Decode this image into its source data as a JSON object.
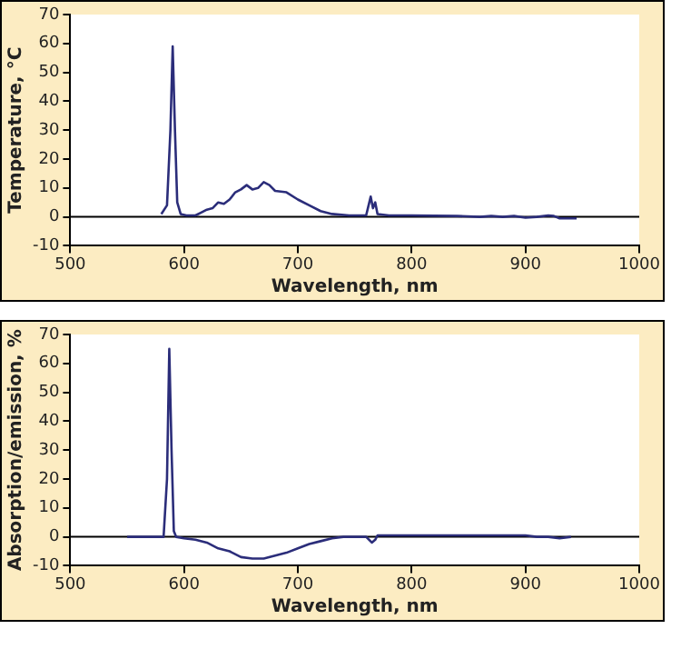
{
  "chart_data": [
    {
      "type": "line",
      "xlabel": "Wavelength, nm",
      "ylabel": "Temperature, °C",
      "xlim": [
        500,
        1000
      ],
      "xticks": [
        500,
        600,
        700,
        800,
        900,
        1000
      ],
      "ylim": [
        -10,
        70
      ],
      "yticks": [
        -10,
        0,
        10,
        20,
        30,
        40,
        50,
        60,
        70
      ],
      "grid": false,
      "marker": "none",
      "ref_lines": [
        {
          "axis": "y",
          "value": 0
        }
      ],
      "series": [
        {
          "color": "#2b2d7a",
          "x": [
            580,
            585,
            588,
            590,
            592,
            594,
            597,
            602,
            610,
            615,
            620,
            625,
            630,
            635,
            640,
            645,
            650,
            655,
            660,
            665,
            670,
            675,
            680,
            690,
            700,
            710,
            720,
            730,
            745,
            760,
            764,
            766,
            768,
            770,
            780,
            800,
            840,
            860,
            870,
            880,
            890,
            900,
            910,
            920,
            925,
            930,
            945
          ],
          "values": [
            1,
            4,
            30,
            59,
            30,
            5,
            1,
            0.5,
            0.5,
            1.5,
            2.5,
            3,
            5,
            4.5,
            6,
            8.5,
            9.5,
            11,
            9.5,
            10,
            12,
            11,
            9,
            8.5,
            6,
            4,
            2,
            1,
            0.5,
            0.5,
            7,
            3,
            5,
            1,
            0.5,
            0.5,
            0.3,
            0,
            0.3,
            0,
            0.3,
            -0.3,
            0,
            0.5,
            0.3,
            -0.5,
            -0.5
          ]
        }
      ]
    },
    {
      "type": "line",
      "xlabel": "Wavelength, nm",
      "ylabel": "Absorption/emission, %",
      "xlim": [
        500,
        1000
      ],
      "xticks": [
        500,
        600,
        700,
        800,
        900,
        1000
      ],
      "ylim": [
        -10,
        70
      ],
      "yticks": [
        -10,
        0,
        10,
        20,
        30,
        40,
        50,
        60,
        70
      ],
      "grid": false,
      "marker": "none",
      "ref_lines": [
        {
          "axis": "y",
          "value": 0
        }
      ],
      "series": [
        {
          "color": "#2b2d7a",
          "x": [
            550,
            575,
            582,
            585,
            587,
            589,
            591,
            593,
            600,
            610,
            620,
            630,
            640,
            650,
            660,
            670,
            680,
            690,
            700,
            710,
            720,
            730,
            740,
            760,
            765,
            768,
            770,
            800,
            850,
            900,
            910,
            920,
            930,
            940
          ],
          "values": [
            0,
            0,
            0,
            20,
            65,
            30,
            2,
            0,
            -0.5,
            -1,
            -2,
            -4,
            -5,
            -7,
            -7.5,
            -7.5,
            -6.5,
            -5.5,
            -4,
            -2.5,
            -1.5,
            -0.5,
            0,
            0,
            -2,
            -1,
            0.5,
            0.5,
            0.5,
            0.5,
            0,
            0,
            -0.5,
            0
          ]
        }
      ]
    }
  ]
}
